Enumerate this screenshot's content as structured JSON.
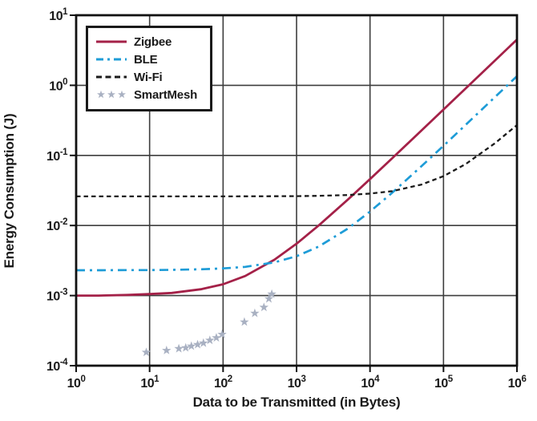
{
  "figure": {
    "background": "#FFFFFF",
    "text_color": "#1A1A1A",
    "grid_color": "#3D3D3D",
    "border_color": "#111111"
  },
  "chart_data": {
    "type": "line",
    "title": "",
    "xlabel": "Data to be Transmitted (in Bytes)",
    "ylabel": "Energy Consumption (J)",
    "x_scale": "log",
    "y_scale": "log",
    "xlim": [
      1,
      1000000
    ],
    "ylim": [
      0.0001,
      10
    ],
    "x_tick_exponents": [
      0,
      1,
      2,
      3,
      4,
      5,
      6
    ],
    "y_tick_exponents": [
      1,
      0,
      -1,
      -2,
      -3,
      -4
    ],
    "grid": true,
    "legend_position": "top-left",
    "series": [
      {
        "name": "Zigbee",
        "line_style": "solid",
        "color": "#A42148",
        "marker": "none",
        "points": [
          [
            1,
            0.001
          ],
          [
            2,
            0.001
          ],
          [
            5,
            0.00102
          ],
          [
            10,
            0.00105
          ],
          [
            20,
            0.00109
          ],
          [
            50,
            0.00123
          ],
          [
            100,
            0.00145
          ],
          [
            200,
            0.0019
          ],
          [
            500,
            0.00325
          ],
          [
            1000,
            0.0055
          ],
          [
            2000,
            0.01
          ],
          [
            5000,
            0.0235
          ],
          [
            10000,
            0.046
          ],
          [
            20000,
            0.091
          ],
          [
            50000,
            0.226
          ],
          [
            100000,
            0.451
          ],
          [
            200000,
            0.901
          ],
          [
            500000,
            2.25
          ],
          [
            1000000,
            4.5
          ]
        ]
      },
      {
        "name": "BLE",
        "line_style": "dash-dot",
        "color": "#1E9CD7",
        "marker": "none",
        "points": [
          [
            1,
            0.0023
          ],
          [
            2,
            0.0023
          ],
          [
            5,
            0.00231
          ],
          [
            10,
            0.00231
          ],
          [
            20,
            0.00233
          ],
          [
            50,
            0.00237
          ],
          [
            100,
            0.00244
          ],
          [
            200,
            0.00257
          ],
          [
            500,
            0.00298
          ],
          [
            1000,
            0.00365
          ],
          [
            2000,
            0.005
          ],
          [
            5000,
            0.00905
          ],
          [
            10000,
            0.0158
          ],
          [
            20000,
            0.0293
          ],
          [
            50000,
            0.0698
          ],
          [
            100000,
            0.137
          ],
          [
            200000,
            0.272
          ],
          [
            500000,
            0.677
          ],
          [
            1000000,
            1.35
          ]
        ]
      },
      {
        "name": "Wi-Fi",
        "line_style": "dashed",
        "color": "#1A1A1A",
        "marker": "none",
        "points": [
          [
            1,
            0.026
          ],
          [
            10,
            0.026
          ],
          [
            100,
            0.026
          ],
          [
            1000,
            0.0262
          ],
          [
            2000,
            0.0265
          ],
          [
            5000,
            0.0272
          ],
          [
            10000,
            0.0285
          ],
          [
            20000,
            0.0309
          ],
          [
            50000,
            0.0383
          ],
          [
            100000,
            0.0505
          ],
          [
            200000,
            0.075
          ],
          [
            500000,
            0.149
          ],
          [
            1000000,
            0.271
          ]
        ]
      },
      {
        "name": "SmartMesh",
        "line_style": "none",
        "color": "#A9B1C2",
        "marker": "star",
        "points": [
          [
            9,
            0.000155
          ],
          [
            17,
            0.000165
          ],
          [
            25,
            0.000175
          ],
          [
            31,
            0.00018
          ],
          [
            37,
            0.00019
          ],
          [
            45,
            0.0002
          ],
          [
            54,
            0.00021
          ],
          [
            66,
            0.00023
          ],
          [
            81,
            0.00025
          ],
          [
            97,
            0.00028
          ],
          [
            195,
            0.00042
          ],
          [
            270,
            0.00056
          ],
          [
            360,
            0.00068
          ],
          [
            420,
            0.0009
          ],
          [
            460,
            0.00105
          ]
        ]
      }
    ]
  }
}
